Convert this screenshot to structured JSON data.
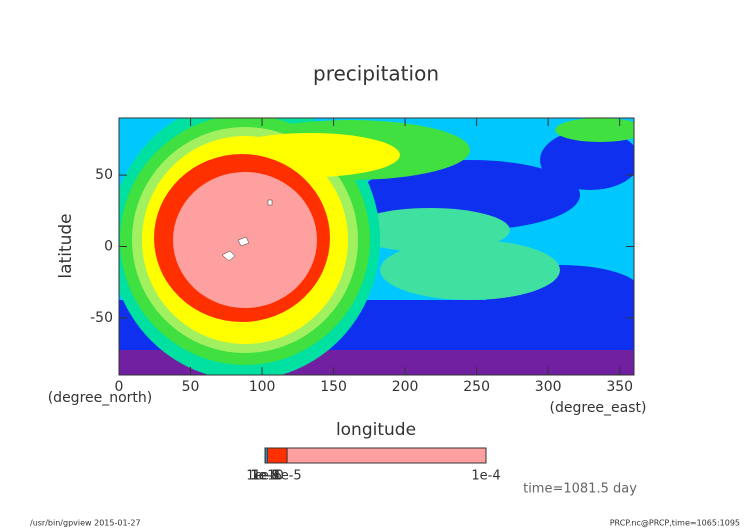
{
  "chart_data": {
    "type": "contour",
    "title": "precipitation",
    "xlabel": "longitude",
    "xunits": "(degree_east)",
    "ylabel": "latitude",
    "yunits": "(degree_north)",
    "xlim": [
      0,
      360
    ],
    "ylim": [
      -90,
      90
    ],
    "xticks": [
      0,
      50,
      100,
      150,
      200,
      250,
      300,
      350
    ],
    "yticks": [
      -50,
      0,
      50
    ],
    "colorbar": {
      "levels": [
        1e-10,
        1e-09,
        1e-08,
        1e-07,
        1e-06,
        1e-05,
        0.0001
      ],
      "colors": [
        "#000000",
        "#8000a0",
        "#0000ff",
        "#00c0ff",
        "#ff3000",
        "#ffa0a0"
      ],
      "ticks": [
        {
          "value": 1e-10,
          "label": "1e-10"
        },
        {
          "value": 1e-09,
          "label": "1e-9"
        },
        {
          "value": 1e-08,
          "label": "1e-8"
        },
        {
          "value": 1e-07,
          "label": "1e-7"
        },
        {
          "value": 1e-06,
          "label": "1e-6"
        },
        {
          "value": 1e-05,
          "label": "1e-5"
        },
        {
          "value": 0.0001,
          "label": "1e-4"
        }
      ]
    },
    "annotation": "time=1081.5 day",
    "footer_left": "/usr/bin/gpview  2015-01-27",
    "footer_right": "PRCP.nc@PRCP,time=1065:1095"
  }
}
